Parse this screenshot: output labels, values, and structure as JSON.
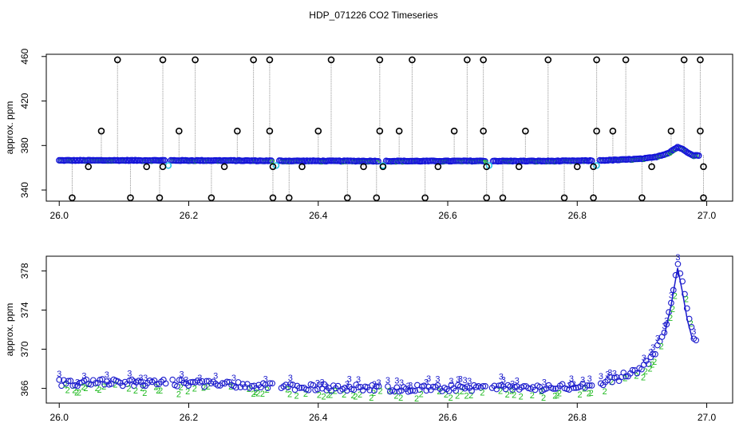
{
  "title": "HDP_071226  CO2 Timeseries",
  "chart_data": [
    {
      "type": "scatter",
      "ylabel": "approx. ppm",
      "xlim": [
        25.98,
        27.04
      ],
      "ylim": [
        330,
        462
      ],
      "xticks": [
        "26.0",
        "26.2",
        "26.4",
        "26.6",
        "26.8",
        "27.0"
      ],
      "yticks": [
        "340",
        "380",
        "420",
        "460"
      ],
      "colors": {
        "spike": "#000000",
        "main": "#1515d8",
        "secondary": "#22cc22",
        "gap": "#28c8e8",
        "connector": "#9a9a9a"
      },
      "baseline": [
        [
          26.0,
          366.6
        ],
        [
          26.1,
          366.6
        ],
        [
          26.16,
          366.6
        ],
        [
          26.2,
          366.5
        ],
        [
          26.25,
          366.5
        ],
        [
          26.33,
          366.2
        ],
        [
          26.4,
          366.1
        ],
        [
          26.5,
          366.0
        ],
        [
          26.6,
          366.0
        ],
        [
          26.66,
          366.1
        ],
        [
          26.7,
          366.0
        ],
        [
          26.75,
          366.0
        ],
        [
          26.8,
          366.2
        ],
        [
          26.83,
          366.5
        ],
        [
          26.86,
          367.0
        ],
        [
          26.9,
          368.0
        ],
        [
          26.92,
          369.5
        ],
        [
          26.94,
          373.0
        ],
        [
          26.955,
          378.5
        ],
        [
          26.96,
          377.5
        ],
        [
          26.97,
          374.0
        ],
        [
          26.98,
          371.0
        ],
        [
          26.99,
          371.2
        ]
      ],
      "spikes_high": [
        26.09,
        26.16,
        26.21,
        26.3,
        26.325,
        26.42,
        26.495,
        26.545,
        26.63,
        26.655,
        26.755,
        26.83,
        26.875,
        26.965,
        26.99
      ],
      "spikes_low": [
        26.02,
        26.11,
        26.155,
        26.235,
        26.33,
        26.355,
        26.445,
        26.49,
        26.565,
        26.66,
        26.685,
        26.78,
        26.825,
        26.9,
        26.995
      ],
      "spikes_393": [
        26.065,
        26.185,
        26.275,
        26.325,
        26.4,
        26.495,
        26.525,
        26.61,
        26.655,
        26.72,
        26.83,
        26.855,
        26.945,
        26.99
      ],
      "spikes_361": [
        26.045,
        26.135,
        26.16,
        26.255,
        26.33,
        26.375,
        26.47,
        26.5,
        26.585,
        26.66,
        26.71,
        26.8,
        26.825,
        26.915,
        26.995
      ]
    },
    {
      "type": "scatter",
      "ylabel": "approx. ppm",
      "xlim": [
        25.98,
        27.04
      ],
      "ylim": [
        364.5,
        379.5
      ],
      "xticks": [
        "26.0",
        "26.2",
        "26.4",
        "26.6",
        "26.8",
        "27.0"
      ],
      "yticks": [
        "366",
        "370",
        "374",
        "378"
      ],
      "series": [
        {
          "values": "3"
        },
        {
          "values": "2"
        }
      ],
      "colors": {
        "series3": "#1a1acc",
        "series2": "#22bb22",
        "circle": "#1a1acc"
      }
    }
  ]
}
